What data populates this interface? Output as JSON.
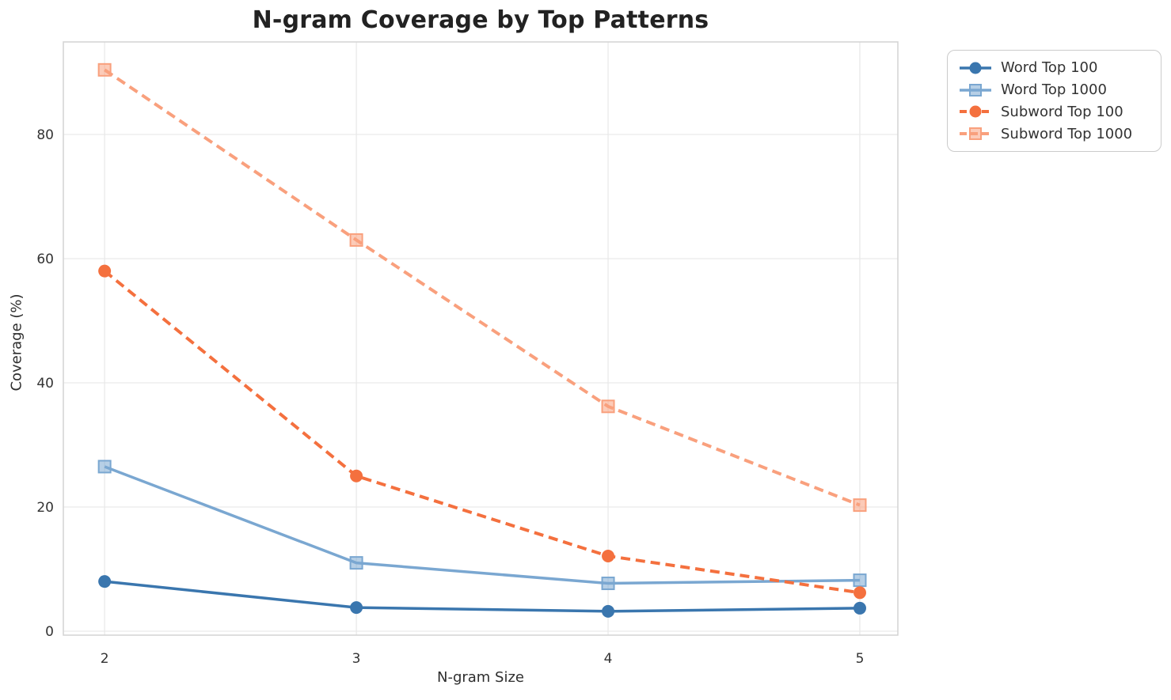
{
  "chart_data": {
    "type": "line",
    "title": "N-gram Coverage by Top Patterns",
    "xlabel": "N-gram Size",
    "ylabel": "Coverage (%)",
    "x": [
      2,
      3,
      4,
      5
    ],
    "x_tick_labels": [
      "2",
      "3",
      "4",
      "5"
    ],
    "y_ticks": [
      0,
      20,
      40,
      60,
      80
    ],
    "xlim": [
      1.836,
      5.151
    ],
    "ylim": [
      -0.64,
      94.9
    ],
    "grid": true,
    "background_color": "#ffffff",
    "grid_color": "#e9e9e9",
    "frame_color": "#d3d3d3",
    "tick_label_color": "#333333",
    "legend_position": "outside-top-right",
    "series": [
      {
        "name": "Word Top 100",
        "values": [
          8.0,
          3.8,
          3.2,
          3.7
        ],
        "color": "#3a76ae",
        "line_style": "solid",
        "marker": "circle"
      },
      {
        "name": "Word Top 1000",
        "values": [
          26.5,
          11.0,
          7.7,
          8.2
        ],
        "color": "#7aa7d1",
        "line_style": "solid",
        "marker": "square"
      },
      {
        "name": "Subword Top 100",
        "values": [
          58.0,
          25.0,
          12.1,
          6.2
        ],
        "color": "#f4703e",
        "line_style": "dashed",
        "marker": "circle"
      },
      {
        "name": "Subword Top 1000",
        "values": [
          90.4,
          63.0,
          36.2,
          20.3
        ],
        "color": "#f9a07d",
        "line_style": "dashed",
        "marker": "square"
      }
    ]
  }
}
